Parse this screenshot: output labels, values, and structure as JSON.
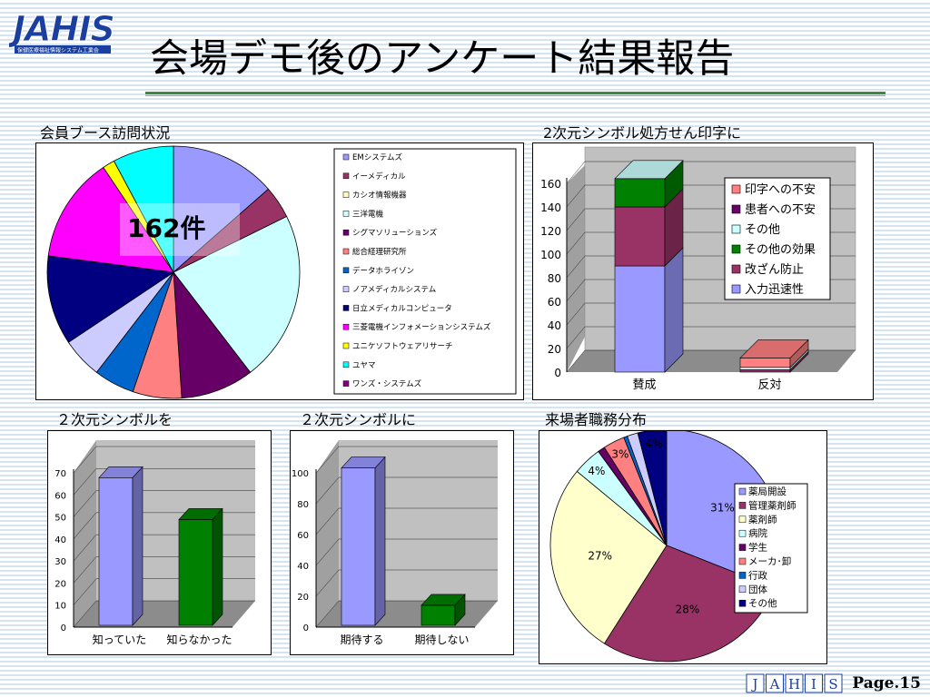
{
  "logo": {
    "text": "JAHIS",
    "subtext": "保健医療福祉情報システム工業会"
  },
  "title": "会場デモ後のアンケート結果報告",
  "footer": {
    "logo_letters": [
      "J",
      "A",
      "H",
      "I",
      "S"
    ],
    "page": "Page.15"
  },
  "chart_data": [
    {
      "type": "pie",
      "title": "会員ブース訪問状況",
      "annotation": "162件",
      "categories": [
        "EMシステムズ",
        "イーメディカル",
        "カシオ情報機器",
        "三洋電機",
        "シグマソリューションズ",
        "総合経理研究所",
        "データホライゾン",
        "ノアメディカルシステム",
        "日立メディカルコンピュータ",
        "三菱電機インフォメーションシステムズ",
        "ユニケソフトウェアリサーチ",
        "ユヤマ",
        "ワンズ・システムズ"
      ],
      "values": [
        13,
        4,
        0,
        21,
        9,
        6,
        5,
        5,
        11,
        13,
        1.5,
        7.5,
        0
      ],
      "colors": [
        "#9999ff",
        "#993366",
        "#ffffcc",
        "#ccffff",
        "#660066",
        "#ff8080",
        "#0066cc",
        "#ccccff",
        "#000080",
        "#ff00ff",
        "#ffff00",
        "#00ffff",
        "#800080"
      ],
      "legend": "right"
    },
    {
      "type": "bar",
      "stacked": true,
      "title": "2次元シンボル処方せん印字に",
      "categories": [
        "賛成",
        "反対"
      ],
      "series": [
        {
          "name": "入力迅速性",
          "values": [
            90,
            0
          ],
          "color": "#9999ff"
        },
        {
          "name": "改ざん防止",
          "values": [
            50,
            2
          ],
          "color": "#993366"
        },
        {
          "name": "その他の効果",
          "values": [
            24,
            0
          ],
          "color": "#008000"
        },
        {
          "name": "その他",
          "values": [
            0,
            2
          ],
          "color": "#ccffff"
        },
        {
          "name": "患者への不安",
          "values": [
            0,
            0
          ],
          "color": "#660066"
        },
        {
          "name": "印字への不安",
          "values": [
            0,
            8
          ],
          "color": "#ff8080"
        }
      ],
      "ylim": [
        0,
        160
      ],
      "yticks": [
        0,
        20,
        40,
        60,
        80,
        100,
        120,
        140,
        160
      ],
      "legend": "right"
    },
    {
      "type": "bar",
      "title": "２次元シンボルを",
      "categories": [
        "知っていた",
        "知らなかった"
      ],
      "values": [
        67,
        48
      ],
      "colors": [
        "#9999ff",
        "#008000"
      ],
      "ylim": [
        0,
        70
      ],
      "yticks": [
        0,
        10,
        20,
        30,
        40,
        50,
        60,
        70
      ]
    },
    {
      "type": "bar",
      "title": "２次元シンボルに",
      "categories": [
        "期待する",
        "期待しない"
      ],
      "values": [
        102,
        13
      ],
      "colors": [
        "#9999ff",
        "#008000"
      ],
      "ylim": [
        0,
        100
      ],
      "yticks": [
        0,
        20,
        40,
        60,
        80,
        100
      ]
    },
    {
      "type": "pie",
      "title": "来場者職務分布",
      "categories": [
        "薬局開設",
        "管理薬剤師",
        "薬剤師",
        "病院",
        "学生",
        "メーカ･卸",
        "行政",
        "団体",
        "その他"
      ],
      "values": [
        31,
        28,
        27,
        4,
        1,
        3,
        0.5,
        1.5,
        4
      ],
      "labels": [
        "31%",
        "28%",
        "27%",
        "4%",
        "",
        "3%",
        "",
        "",
        "4%"
      ],
      "colors": [
        "#9999ff",
        "#993366",
        "#ffffcc",
        "#ccffff",
        "#660066",
        "#ff8080",
        "#0066cc",
        "#ccccff",
        "#000080"
      ],
      "legend": "right"
    }
  ]
}
